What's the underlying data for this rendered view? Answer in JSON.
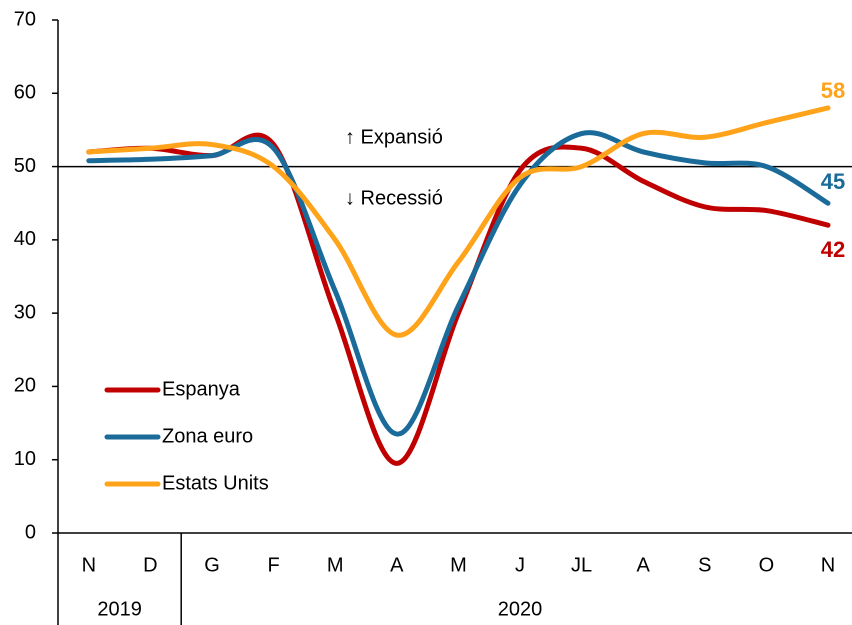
{
  "chart_data": {
    "type": "line",
    "categories": [
      "N",
      "D",
      "G",
      "F",
      "M",
      "A",
      "M",
      "J",
      "JL",
      "A",
      "S",
      "O",
      "N"
    ],
    "year_labels": [
      "2019",
      "2020"
    ],
    "series": [
      {
        "name": "Espanya",
        "color": "#c00000",
        "values": [
          52,
          52.5,
          51.5,
          53,
          30,
          9.5,
          30,
          49.5,
          52.5,
          48,
          44.5,
          44,
          42
        ]
      },
      {
        "name": "Zona euro",
        "color": "#1a6b9a",
        "values": [
          50.8,
          51,
          51.5,
          52.5,
          33,
          13.5,
          31,
          47.5,
          54.5,
          52,
          50.5,
          50,
          45
        ]
      },
      {
        "name": "Estats Units",
        "color": "#ffa31a",
        "values": [
          52,
          52.5,
          53,
          50,
          40,
          27,
          37,
          48.5,
          50,
          54.5,
          54,
          56,
          58
        ]
      }
    ],
    "reference_line": 50,
    "annotations": [
      "↑ Expansió",
      "↓ Recessió"
    ],
    "ylim": [
      0,
      70
    ],
    "yticks": [
      0,
      10,
      20,
      30,
      40,
      50,
      60,
      70
    ],
    "grid": false
  }
}
